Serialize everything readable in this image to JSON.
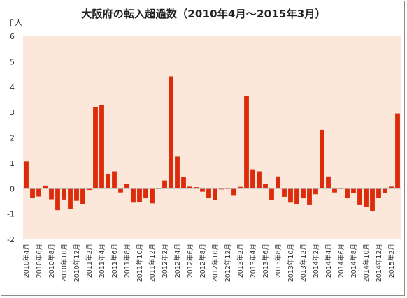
{
  "chart_data": {
    "type": "bar",
    "title": "大阪府の転入超過数（2010年4月～2015年3月）",
    "unit_label": "千人",
    "ylim": [
      -2,
      6
    ],
    "yticks": [
      -2,
      -1,
      0,
      1,
      2,
      3,
      4,
      5,
      6
    ],
    "grid": false,
    "bar_color": "#dd2c0c",
    "plot_background": "#fce8da",
    "categories": [
      "2010年4月",
      "2010年5月",
      "2010年6月",
      "2010年7月",
      "2010年8月",
      "2010年9月",
      "2010年10月",
      "2010年11月",
      "2010年12月",
      "2011年1月",
      "2011年2月",
      "2011年3月",
      "2011年4月",
      "2011年5月",
      "2011年6月",
      "2011年7月",
      "2011年8月",
      "2011年9月",
      "2011年10月",
      "2011年11月",
      "2011年12月",
      "2012年1月",
      "2012年2月",
      "2012年3月",
      "2012年4月",
      "2012年5月",
      "2012年6月",
      "2012年7月",
      "2012年8月",
      "2012年9月",
      "2012年10月",
      "2012年11月",
      "2012年12月",
      "2013年1月",
      "2013年2月",
      "2013年3月",
      "2013年4月",
      "2013年5月",
      "2013年6月",
      "2013年7月",
      "2013年8月",
      "2013年9月",
      "2013年10月",
      "2013年11月",
      "2013年12月",
      "2014年1月",
      "2014年2月",
      "2014年3月",
      "2014年4月",
      "2014年5月",
      "2014年6月",
      "2014年7月",
      "2014年8月",
      "2014年9月",
      "2014年10月",
      "2014年11月",
      "2014年12月",
      "2015年1月",
      "2015年2月",
      "2015年3月"
    ],
    "xtick_labels": [
      "2010年4月",
      "2010年6月",
      "2010年8月",
      "2010年10月",
      "2010年12月",
      "2011年2月",
      "2011年4月",
      "2011年6月",
      "2011年8月",
      "2011年10月",
      "2011年12月",
      "2012年2月",
      "2012年4月",
      "2012年6月",
      "2012年8月",
      "2012年10月",
      "2012年12月",
      "2013年2月",
      "2013年4月",
      "2013年6月",
      "2013年8月",
      "2013年10月",
      "2013年12月",
      "2014年2月",
      "2014年4月",
      "2014年6月",
      "2014年8月",
      "2014年10月",
      "2014年12月",
      "2015年2月"
    ],
    "values": [
      1.07,
      -0.35,
      -0.31,
      0.12,
      -0.42,
      -0.85,
      -0.43,
      -0.81,
      -0.48,
      -0.62,
      -0.05,
      3.2,
      3.3,
      0.58,
      0.68,
      -0.15,
      0.18,
      -0.55,
      -0.52,
      -0.38,
      -0.58,
      -0.02,
      0.32,
      4.42,
      1.26,
      0.45,
      0.08,
      0.06,
      -0.12,
      -0.38,
      -0.45,
      -0.03,
      -0.02,
      -0.28,
      0.07,
      3.66,
      0.76,
      0.68,
      0.18,
      -0.45,
      0.48,
      -0.32,
      -0.55,
      -0.62,
      -0.38,
      -0.65,
      -0.22,
      2.32,
      0.48,
      -0.15,
      -0.02,
      -0.38,
      -0.18,
      -0.65,
      -0.72,
      -0.88,
      -0.35,
      -0.18,
      0.08,
      2.96
    ]
  }
}
